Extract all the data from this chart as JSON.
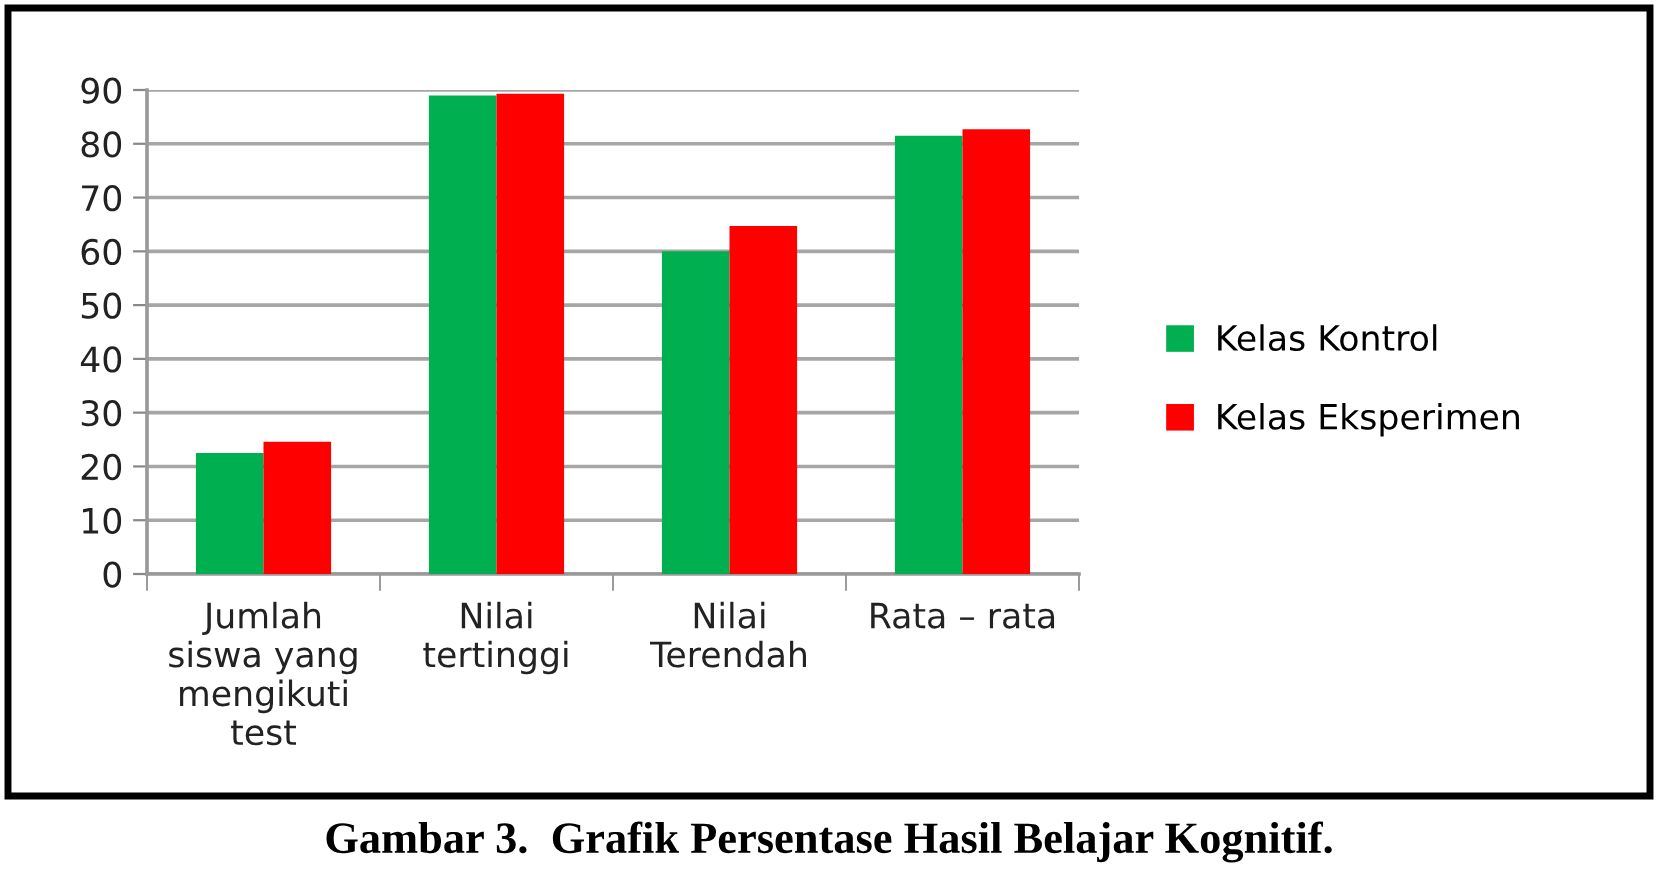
{
  "chart_data": {
    "type": "bar",
    "categories": [
      "Jumlah\nsiswa yang\nmengikuti\ntest",
      "Nilai\ntertinggi",
      "Nilai\nTerendah",
      "Rata – rata"
    ],
    "series": [
      {
        "name": "Kelas Kontrol",
        "color": "#00b050",
        "values": [
          22.5,
          89,
          60,
          81.5
        ]
      },
      {
        "name": "Kelas Eksperimen",
        "color": "#ff0000",
        "values": [
          24.6,
          89.3,
          64.7,
          82.7
        ]
      }
    ],
    "ylim": [
      0,
      90
    ],
    "yticks": [
      0,
      10,
      20,
      30,
      40,
      50,
      60,
      70,
      80,
      90
    ],
    "grid": "y",
    "legend": "right",
    "annotations": [
      "Gambar 3.  Grafik Persentase Hasil Belajar Kognitif."
    ]
  }
}
